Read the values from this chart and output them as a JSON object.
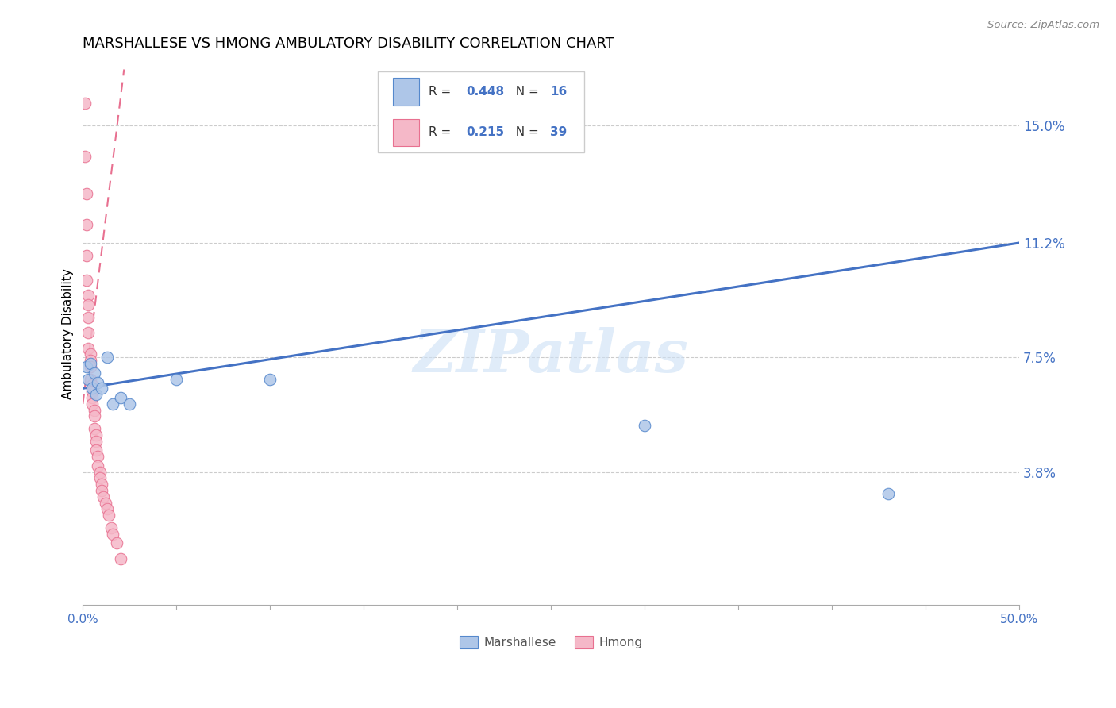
{
  "title": "MARSHALLESE VS HMONG AMBULATORY DISABILITY CORRELATION CHART",
  "source": "Source: ZipAtlas.com",
  "ylabel": "Ambulatory Disability",
  "ytick_labels": [
    "15.0%",
    "11.2%",
    "7.5%",
    "3.8%"
  ],
  "ytick_values": [
    0.15,
    0.112,
    0.075,
    0.038
  ],
  "xlim": [
    0.0,
    0.5
  ],
  "ylim": [
    -0.005,
    0.17
  ],
  "legend_blue_R": "0.448",
  "legend_blue_N": "16",
  "legend_pink_R": "0.215",
  "legend_pink_N": "39",
  "blue_fill": "#aec6e8",
  "pink_fill": "#f5b8c8",
  "blue_edge": "#5588cc",
  "pink_edge": "#e87090",
  "blue_line": "#4472c4",
  "pink_line": "#e87090",
  "watermark": "ZIPatlas",
  "marshallese_x": [
    0.002,
    0.003,
    0.004,
    0.005,
    0.006,
    0.007,
    0.008,
    0.01,
    0.013,
    0.016,
    0.02,
    0.025,
    0.05,
    0.1,
    0.3,
    0.43
  ],
  "marshallese_y": [
    0.072,
    0.068,
    0.073,
    0.065,
    0.07,
    0.063,
    0.067,
    0.065,
    0.075,
    0.06,
    0.062,
    0.06,
    0.068,
    0.068,
    0.053,
    0.031
  ],
  "hmong_x": [
    0.001,
    0.001,
    0.002,
    0.002,
    0.002,
    0.002,
    0.003,
    0.003,
    0.003,
    0.003,
    0.003,
    0.004,
    0.004,
    0.004,
    0.004,
    0.005,
    0.005,
    0.005,
    0.005,
    0.006,
    0.006,
    0.006,
    0.007,
    0.007,
    0.007,
    0.008,
    0.008,
    0.009,
    0.009,
    0.01,
    0.01,
    0.011,
    0.012,
    0.013,
    0.014,
    0.015,
    0.016,
    0.018,
    0.02
  ],
  "hmong_y": [
    0.157,
    0.14,
    0.128,
    0.118,
    0.108,
    0.1,
    0.095,
    0.092,
    0.088,
    0.083,
    0.078,
    0.076,
    0.074,
    0.072,
    0.068,
    0.066,
    0.064,
    0.062,
    0.06,
    0.058,
    0.056,
    0.052,
    0.05,
    0.048,
    0.045,
    0.043,
    0.04,
    0.038,
    0.036,
    0.034,
    0.032,
    0.03,
    0.028,
    0.026,
    0.024,
    0.02,
    0.018,
    0.015,
    0.01
  ],
  "blue_trend_x0": 0.0,
  "blue_trend_y0": 0.065,
  "blue_trend_x1": 0.5,
  "blue_trend_y1": 0.112,
  "pink_trend_x0": 0.0,
  "pink_trend_y0": 0.06,
  "pink_trend_x1": 0.022,
  "pink_trend_y1": 0.168
}
